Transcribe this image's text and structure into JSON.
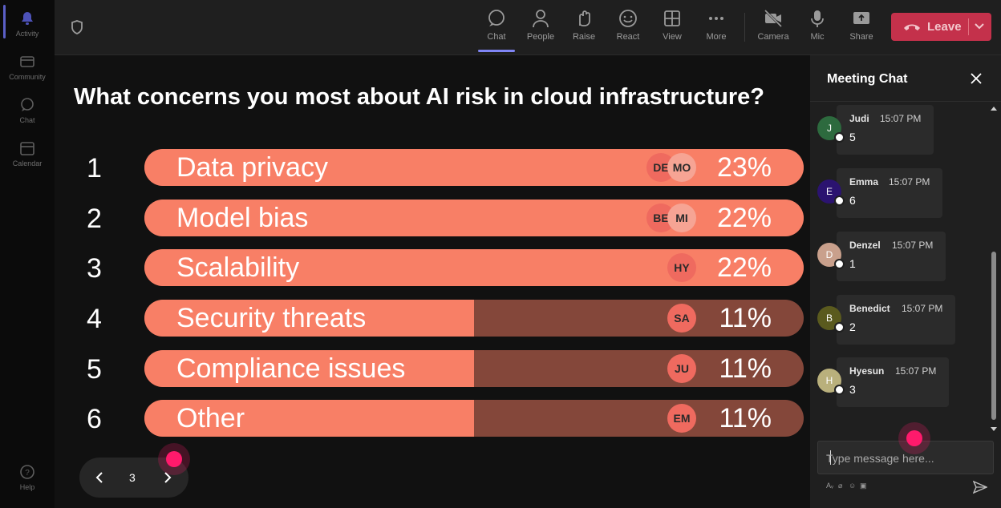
{
  "sidebar": {
    "items": [
      {
        "label": "Activity",
        "icon": "bell-icon"
      },
      {
        "label": "Community",
        "icon": "community-icon"
      },
      {
        "label": "Chat",
        "icon": "chat-icon"
      },
      {
        "label": "Calendar",
        "icon": "calendar-icon"
      },
      {
        "label": "Help",
        "icon": "help-icon"
      }
    ]
  },
  "toolbar": {
    "buttons": [
      {
        "label": "Chat",
        "icon": "chat-icon"
      },
      {
        "label": "People",
        "icon": "people-icon"
      },
      {
        "label": "Raise",
        "icon": "raise-hand-icon"
      },
      {
        "label": "React",
        "icon": "react-icon"
      },
      {
        "label": "View",
        "icon": "view-grid-icon"
      },
      {
        "label": "More",
        "icon": "more-icon"
      },
      {
        "label": "Camera",
        "icon": "camera-off-icon"
      },
      {
        "label": "Mic",
        "icon": "mic-icon"
      },
      {
        "label": "Share",
        "icon": "share-icon"
      }
    ],
    "leave_label": "Leave",
    "accent": "#c4314b"
  },
  "poll": {
    "question": "What concerns you most about AI risk in cloud infrastructure?",
    "options": [
      {
        "rank": "1",
        "label": "Data privacy",
        "percent_label": "23%",
        "fill": 1.0,
        "avatars": [
          "DE",
          "MO"
        ]
      },
      {
        "rank": "2",
        "label": "Model bias",
        "percent_label": "22%",
        "fill": 1.0,
        "avatars": [
          "BE",
          "MI"
        ]
      },
      {
        "rank": "3",
        "label": "Scalability",
        "percent_label": "22%",
        "fill": 1.0,
        "avatars": [
          "HY"
        ]
      },
      {
        "rank": "4",
        "label": "Security threats",
        "percent_label": "11%",
        "fill": 0.5,
        "avatars": [
          "SA"
        ]
      },
      {
        "rank": "5",
        "label": "Compliance issues",
        "percent_label": "11%",
        "fill": 0.5,
        "avatars": [
          "JU"
        ]
      },
      {
        "rank": "6",
        "label": "Other",
        "percent_label": "11%",
        "fill": 0.5,
        "avatars": [
          "EM"
        ]
      }
    ],
    "bar_color": "#f87f66",
    "track_color": "#84473a"
  },
  "pager": {
    "page": "3"
  },
  "chat": {
    "title": "Meeting Chat",
    "messages": [
      {
        "initial": "J",
        "name": "Judi",
        "time": "15:07 PM",
        "text": "5",
        "color": "#2d6a3e"
      },
      {
        "initial": "E",
        "name": "Emma",
        "time": "15:07 PM",
        "text": "6",
        "color": "#2b1370"
      },
      {
        "initial": "D",
        "name": "Denzel",
        "time": "15:07 PM",
        "text": "1",
        "color": "#c9a08c"
      },
      {
        "initial": "B",
        "name": "Benedict",
        "time": "15:07 PM",
        "text": "2",
        "color": "#5a5a1e"
      },
      {
        "initial": "H",
        "name": "Hyesun",
        "time": "15:07 PM",
        "text": "3",
        "color": "#b9b07c"
      }
    ],
    "input_placeholder": "Type message here..."
  }
}
